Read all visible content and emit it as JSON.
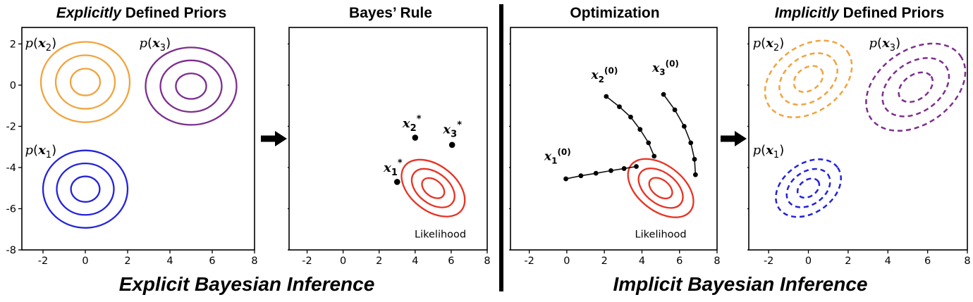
{
  "figure": {
    "caption_left": "Explicit Bayesian Inference",
    "caption_right": "Implicit Bayesian Inference"
  },
  "colors": {
    "orange": "#F2A33C",
    "purple": "#7D2E8E",
    "blue": "#2323DB",
    "red": "#E93223",
    "black": "#000000"
  },
  "chart_data": [
    {
      "id": "explicitly-defined-priors",
      "type": "contour",
      "title_italic": "Explicitly",
      "title_rest": " Defined Priors",
      "xlim": [
        -3,
        8
      ],
      "ylim": [
        -8,
        2.8
      ],
      "xticks": [
        -2,
        0,
        2,
        4,
        6,
        8
      ],
      "yticks": [
        2,
        0,
        -2,
        -4,
        -6,
        -8
      ],
      "show_ytick_labels": true,
      "groups": [
        {
          "label": "p(x_2)",
          "label_xy": [
            -2.85,
            1.85
          ],
          "color": "orange",
          "center": [
            0,
            0.15
          ],
          "rings": [
            [
              0.7,
              0.65
            ],
            [
              1.4,
              1.3
            ],
            [
              2.1,
              1.95
            ]
          ],
          "rotate": 0,
          "dashed": false
        },
        {
          "label": "p(x_3)",
          "label_xy": [
            2.55,
            1.85
          ],
          "color": "purple",
          "center": [
            5,
            -0.05
          ],
          "rings": [
            [
              0.72,
              0.62
            ],
            [
              1.45,
              1.25
            ],
            [
              2.15,
              1.88
            ]
          ],
          "rotate": 0,
          "dashed": false
        },
        {
          "label": "p(x_1)",
          "label_xy": [
            -2.85,
            -3.35
          ],
          "color": "blue",
          "center": [
            0,
            -5.05
          ],
          "rings": [
            [
              0.68,
              0.62
            ],
            [
              1.35,
              1.25
            ],
            [
              2.0,
              1.88
            ]
          ],
          "rotate": 0,
          "dashed": false
        }
      ]
    },
    {
      "id": "bayes-rule",
      "type": "contour",
      "title_italic": "",
      "title_rest": "Bayes’ Rule",
      "xlim": [
        -3,
        8
      ],
      "ylim": [
        -8,
        2.8
      ],
      "xticks": [
        -2,
        0,
        2,
        4,
        6,
        8
      ],
      "yticks": [
        2,
        0,
        -2,
        -4,
        -6,
        -8
      ],
      "show_ytick_labels": false,
      "groups": [
        {
          "label": "",
          "label_xy": [
            0,
            0
          ],
          "color": "red",
          "center": [
            5,
            -5
          ],
          "rings": [
            [
              0.7,
              0.4
            ],
            [
              1.35,
              0.75
            ],
            [
              2.0,
              1.1
            ]
          ],
          "rotate": 38,
          "dashed": false
        }
      ],
      "points": [
        {
          "label": "x_1^*",
          "xy": [
            3.0,
            -4.7
          ],
          "label_xy": [
            2.25,
            -4.2
          ]
        },
        {
          "label": "x_2^*",
          "xy": [
            4.0,
            -2.55
          ],
          "label_xy": [
            3.3,
            -2.05
          ]
        },
        {
          "label": "x_3^*",
          "xy": [
            6.05,
            -2.9
          ],
          "label_xy": [
            5.55,
            -2.35
          ]
        }
      ],
      "annotations": [
        {
          "text": "Likelihood",
          "xy": [
            5.4,
            -7.4
          ],
          "anchor": "middle"
        }
      ]
    },
    {
      "id": "optimization",
      "type": "contour",
      "title_italic": "",
      "title_rest": "Optimization",
      "xlim": [
        -3,
        8
      ],
      "ylim": [
        -8,
        2.8
      ],
      "xticks": [
        -2,
        0,
        2,
        4,
        6,
        8
      ],
      "yticks": [
        2,
        0,
        -2,
        -4,
        -6,
        -8
      ],
      "show_ytick_labels": false,
      "groups": [
        {
          "label": "",
          "label_xy": [
            0,
            0
          ],
          "color": "red",
          "center": [
            5,
            -5
          ],
          "rings": [
            [
              0.7,
              0.4
            ],
            [
              1.35,
              0.75
            ],
            [
              2.0,
              1.1
            ]
          ],
          "rotate": 38,
          "dashed": false
        }
      ],
      "trajectories": [
        {
          "label": "x_1^(0)",
          "label_xy": [
            -1.2,
            -3.65
          ],
          "points": [
            [
              -0.05,
              -4.55
            ],
            [
              0.75,
              -4.4
            ],
            [
              1.55,
              -4.28
            ],
            [
              2.35,
              -4.15
            ],
            [
              3.05,
              -4.05
            ],
            [
              3.7,
              -3.95
            ]
          ]
        },
        {
          "label": "x_2^(0)",
          "label_xy": [
            1.3,
            0.3
          ],
          "points": [
            [
              2.1,
              -0.55
            ],
            [
              2.8,
              -1.05
            ],
            [
              3.4,
              -1.55
            ],
            [
              3.9,
              -2.15
            ],
            [
              4.35,
              -2.8
            ],
            [
              4.65,
              -3.45
            ]
          ]
        },
        {
          "label": "x_3^(0)",
          "label_xy": [
            4.55,
            0.65
          ],
          "points": [
            [
              5.15,
              -0.45
            ],
            [
              5.75,
              -1.2
            ],
            [
              6.25,
              -2.0
            ],
            [
              6.6,
              -2.8
            ],
            [
              6.8,
              -3.6
            ],
            [
              6.85,
              -4.35
            ]
          ]
        }
      ],
      "annotations": [
        {
          "text": "Likelihood",
          "xy": [
            5.0,
            -7.4
          ],
          "anchor": "middle"
        }
      ]
    },
    {
      "id": "implicitly-defined-priors",
      "type": "contour",
      "title_italic": "Implicitly",
      "title_rest": " Defined Priors",
      "xlim": [
        -3,
        8
      ],
      "ylim": [
        -8,
        2.8
      ],
      "xticks": [
        -2,
        0,
        2,
        4,
        6,
        8
      ],
      "yticks": [
        2,
        0,
        -2,
        -4,
        -6,
        -8
      ],
      "show_ytick_labels": false,
      "groups": [
        {
          "label": "p(x_2)",
          "label_xy": [
            -2.8,
            1.85
          ],
          "color": "orange",
          "center": [
            0,
            0.3
          ],
          "rings": [
            [
              0.8,
              0.55
            ],
            [
              1.6,
              1.08
            ],
            [
              2.4,
              1.6
            ]
          ],
          "rotate": -35,
          "dashed": true
        },
        {
          "label": "p(x_3)",
          "label_xy": [
            3.05,
            1.85
          ],
          "color": "purple",
          "center": [
            5.4,
            -0.1
          ],
          "rings": [
            [
              0.95,
              0.6
            ],
            [
              1.85,
              1.2
            ],
            [
              2.75,
              1.8
            ]
          ],
          "rotate": -35,
          "dashed": true
        },
        {
          "label": "p(x_1)",
          "label_xy": [
            -2.8,
            -3.35
          ],
          "color": "blue",
          "center": [
            0,
            -5.0
          ],
          "rings": [
            [
              0.6,
              0.4
            ],
            [
              1.2,
              0.8
            ],
            [
              1.8,
              1.2
            ]
          ],
          "rotate": -35,
          "dashed": true
        }
      ]
    }
  ]
}
